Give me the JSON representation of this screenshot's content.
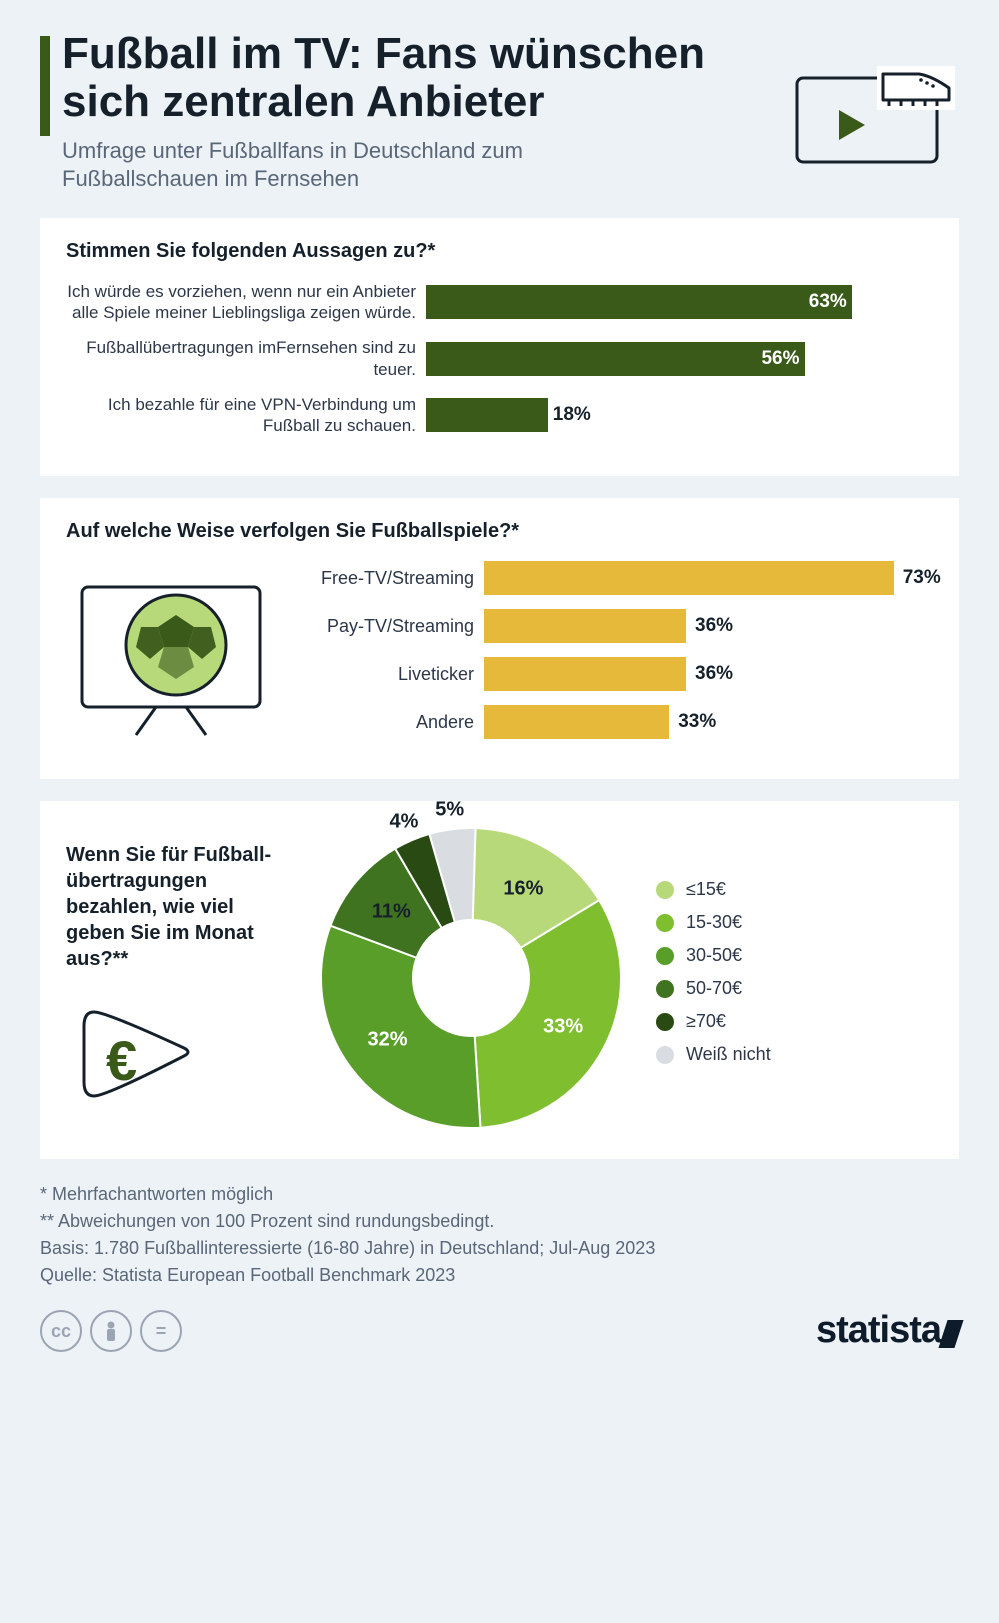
{
  "header": {
    "title": "Fußball im TV: Fans wünschen sich zentralen Anbieter",
    "subtitle": "Umfrage unter Fußballfans in Deutschland zum Fußballschauen im Fernsehen",
    "accent_color": "#3a5a1a"
  },
  "chart1": {
    "type": "bar",
    "question": "Stimmen Sie folgenden Aussagen zu?*",
    "bar_color": "#3a5a1a",
    "max": 75,
    "items": [
      {
        "label": "Ich würde es vorziehen, wenn nur ein Anbieter alle Spiele meiner Lieblingsliga zeigen würde.",
        "value": 63,
        "value_label": "63%"
      },
      {
        "label": "Fußballübertragungen imFernsehen sind zu teuer.",
        "value": 56,
        "value_label": "56%"
      },
      {
        "label": "Ich bezahle für eine VPN-Verbindung um Fußball zu schauen.",
        "value": 18,
        "value_label": "18%"
      }
    ]
  },
  "chart2": {
    "type": "bar",
    "question": "Auf welche Weise verfolgen Sie Fußballspiele?*",
    "bar_color": "#e6b93a",
    "max": 80,
    "items": [
      {
        "label": "Free-TV/Streaming",
        "value": 73,
        "value_label": "73%"
      },
      {
        "label": "Pay-TV/Streaming",
        "value": 36,
        "value_label": "36%"
      },
      {
        "label": "Liveticker",
        "value": 36,
        "value_label": "36%"
      },
      {
        "label": "Andere",
        "value": 33,
        "value_label": "33%"
      }
    ]
  },
  "chart3": {
    "type": "donut",
    "question": "Wenn Sie für Fußball­übertragungen bezahlen, wie viel geben Sie im Monat aus?**",
    "inner_radius": 58,
    "outer_radius": 150,
    "slices": [
      {
        "label": "≤15€",
        "value": 16,
        "value_label": "16%",
        "color": "#b7d97a"
      },
      {
        "label": "15-30€",
        "value": 33,
        "value_label": "33%",
        "color": "#7fbf2f"
      },
      {
        "label": "30-50€",
        "value": 32,
        "value_label": "32%",
        "color": "#5a9e2a"
      },
      {
        "label": "50-70€",
        "value": 11,
        "value_label": "11%",
        "color": "#3f7320"
      },
      {
        "label": "≥70€",
        "value": 4,
        "value_label": "4%",
        "color": "#2a4a14"
      },
      {
        "label": "Weiß nicht",
        "value": 5,
        "value_label": "5%",
        "color": "#d9dde2"
      }
    ]
  },
  "footnotes": {
    "star": "*   Mehrfachantworten möglich",
    "dstar": "** Abweichungen von 100 Prozent sind rundungsbedingt.",
    "basis": "Basis: 1.780 Fußballinteressierte (16-80 Jahre) in Deutschland; Jul-Aug 2023",
    "source": "Quelle: Statista European Football Benchmark 2023"
  },
  "brand": "statista",
  "colors": {
    "page_bg": "#edf2f7",
    "panel_bg": "#ffffff",
    "text": "#15202b",
    "muted": "#5a6778"
  }
}
